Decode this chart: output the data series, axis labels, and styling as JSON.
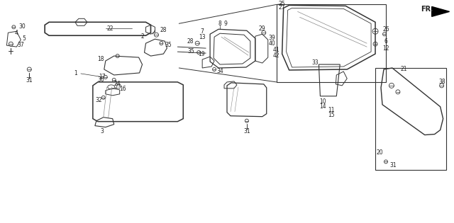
{
  "bg_color": "#ffffff",
  "line_color": "#333333",
  "text_color": "#222222",
  "fig_width": 6.4,
  "fig_height": 3.15,
  "dpi": 100,
  "gray": "#888888"
}
